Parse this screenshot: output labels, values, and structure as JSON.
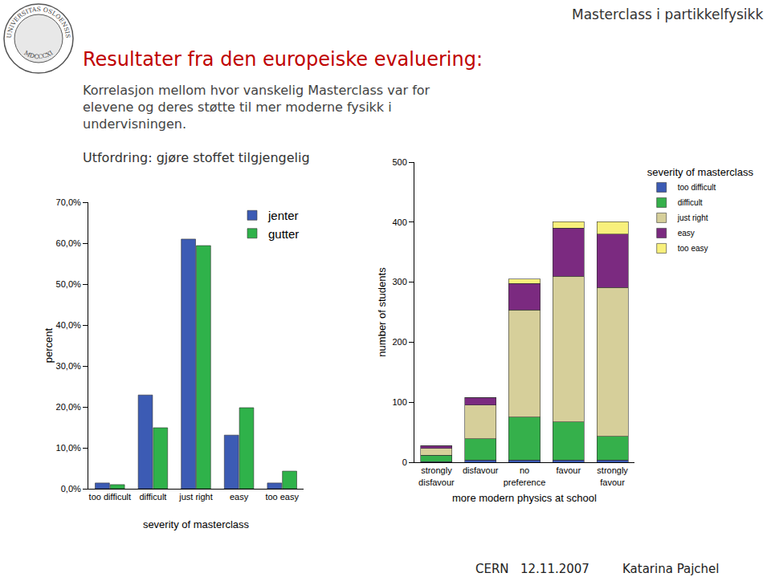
{
  "slide": {
    "header": "Masterclass i partikkelfysikk",
    "title": "Resultater fra den europeiske evaluering:",
    "body": "Korrelasjon mellom hvor vanskelig Masterclass var for elevene og deres støtte til mer moderne fysikk i undervisningen.",
    "challenge": "Utfordring: gjøre stoffet tilgjengelig",
    "footer": [
      "CERN",
      "12.11.2007",
      "Katarina Pajchel"
    ],
    "logo": {
      "text": "UNIVERSITAS OSLOENSIS",
      "year": "MDCCCXI"
    }
  },
  "chart_data": [
    {
      "type": "bar",
      "x_label": "severity of masterclass",
      "y_label": "percent",
      "categories": [
        "too difficult",
        "difficult",
        "just right",
        "easy",
        "too easy"
      ],
      "series": [
        {
          "name": "jenter",
          "color": "#3c5bb4",
          "values": [
            1.4,
            22.9,
            61.0,
            13.1,
            1.4
          ]
        },
        {
          "name": "gutter",
          "color": "#2fb24a",
          "values": [
            1.0,
            14.9,
            59.4,
            19.8,
            4.3
          ]
        }
      ],
      "ylim": [
        0,
        70
      ],
      "yticks": [
        {
          "value": 0,
          "label": "0,0%"
        },
        {
          "value": 10,
          "label": "10,0%"
        },
        {
          "value": 20,
          "label": "20,0%"
        },
        {
          "value": 30,
          "label": "30,0%"
        },
        {
          "value": 40,
          "label": "40,0%"
        },
        {
          "value": 50,
          "label": "50,0%"
        },
        {
          "value": 60,
          "label": "60,0%"
        },
        {
          "value": 70,
          "label": "70,0%"
        }
      ],
      "grid": false,
      "legend": "top-right"
    },
    {
      "type": "bar",
      "stacked": true,
      "x_label": "more modern physics at school",
      "y_label": "number of students",
      "legend_title": "severity of masterclass",
      "categories": [
        "strongly disfavour",
        "disfavour",
        "no preference",
        "favour",
        "strongly favour"
      ],
      "series": [
        {
          "name": "too difficult",
          "color": "#3c5bb4",
          "values": [
            1,
            4,
            4,
            4,
            4
          ]
        },
        {
          "name": "difficult",
          "color": "#35b04b",
          "values": [
            11,
            35,
            71,
            63,
            39
          ]
        },
        {
          "name": "just right",
          "color": "#d6cf9a",
          "values": [
            11,
            56,
            179,
            243,
            248
          ]
        },
        {
          "name": "easy",
          "color": "#7b2a80",
          "values": [
            5,
            13,
            44,
            80,
            89
          ]
        },
        {
          "name": "too easy",
          "color": "#f8f07c",
          "values": [
            0,
            0,
            7,
            11,
            21
          ]
        }
      ],
      "ylim": [
        0,
        500
      ],
      "yticks": [
        0,
        100,
        200,
        300,
        400,
        500
      ],
      "grid": false,
      "legend": "right"
    }
  ]
}
